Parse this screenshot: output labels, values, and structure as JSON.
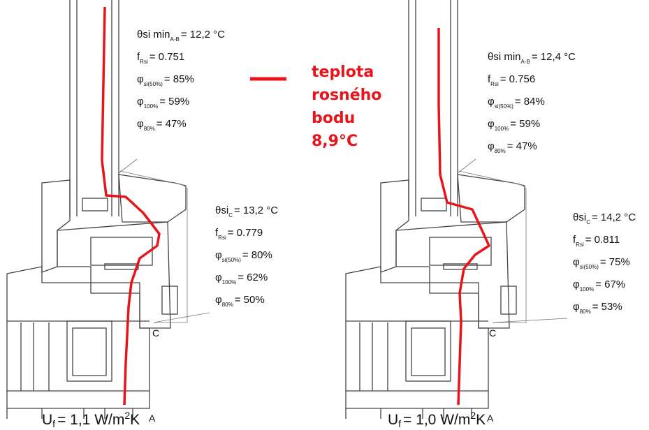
{
  "legend": {
    "lines": [
      "teplota",
      "rosného",
      "bodu",
      "8,9°C"
    ]
  },
  "panels": [
    {
      "top": [
        {
          "prefix": "θsi min",
          "sub": "A-B",
          "suffix": "= 12,2 °C"
        },
        {
          "prefix": "f",
          "sub": "Rsi",
          "suffix": "= 0.751"
        },
        {
          "prefix": "φ",
          "sub": "si(50%)",
          "suffix": "= 85%"
        },
        {
          "prefix": "φ",
          "sub": "100%",
          "suffix": "= 59%"
        },
        {
          "prefix": "φ",
          "sub": "80%",
          "suffix": "= 47%"
        }
      ],
      "point_c": [
        {
          "prefix": "θsi",
          "sub": "C",
          "suffix": "= 13,2 °C"
        },
        {
          "prefix": "f",
          "sub": "Rsi",
          "suffix": "= 0.779"
        },
        {
          "prefix": "φ",
          "sub": "si(50%)",
          "suffix": "= 80%"
        },
        {
          "prefix": "φ",
          "sub": "100%",
          "suffix": "= 62%"
        },
        {
          "prefix": "φ",
          "sub": "80%",
          "suffix": "= 50%"
        }
      ],
      "label_a": "A",
      "label_c": "C",
      "uf": {
        "prefix": "U",
        "sub": "f",
        "mid": "= 1,1  W/m",
        "sup": "2",
        "suffix": "K"
      }
    },
    {
      "top": [
        {
          "prefix": "θsi min",
          "sub": "A-B",
          "suffix": "= 12,4 °C"
        },
        {
          "prefix": "f",
          "sub": "Rsi",
          "suffix": "= 0.756"
        },
        {
          "prefix": "φ",
          "sub": "si(50%)",
          "suffix": "= 84%"
        },
        {
          "prefix": "φ",
          "sub": "100%",
          "suffix": "= 59%"
        },
        {
          "prefix": "φ",
          "sub": "80%",
          "suffix": "= 47%"
        }
      ],
      "point_c": [
        {
          "prefix": "θsi",
          "sub": "C",
          "suffix": "= 14,2 °C"
        },
        {
          "prefix": "f",
          "sub": "Rsi",
          "suffix": "= 0.811"
        },
        {
          "prefix": "φ",
          "sub": "si(50%)",
          "suffix": "= 75%"
        },
        {
          "prefix": "φ",
          "sub": "100%",
          "suffix": "= 67%"
        },
        {
          "prefix": "φ",
          "sub": "80%",
          "suffix": "= 53%"
        }
      ],
      "label_a": "A",
      "label_c": "C",
      "uf": {
        "prefix": "U",
        "sub": "f",
        "mid": "= 1,0  W/m",
        "sup": "2",
        "suffix": "K"
      }
    }
  ]
}
